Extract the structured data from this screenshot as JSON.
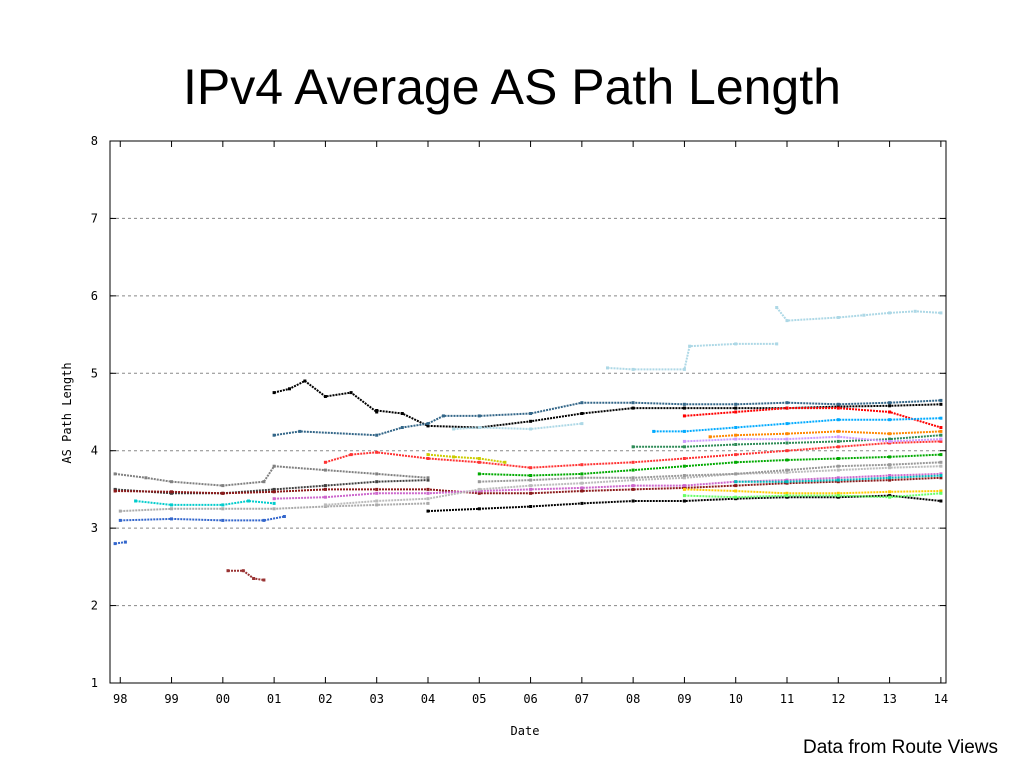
{
  "slide": {
    "title": "IPv4 Average AS Path Length",
    "footnote": "Data from Route Views"
  },
  "chart_data": {
    "type": "scatter",
    "title": "",
    "xlabel": "Date",
    "ylabel": "AS Path Length",
    "xlim": [
      1997.8,
      2014.1
    ],
    "ylim": [
      1,
      8
    ],
    "xticks": [
      1998,
      1999,
      2000,
      2001,
      2002,
      2003,
      2004,
      2005,
      2006,
      2007,
      2008,
      2009,
      2010,
      2011,
      2012,
      2013,
      2014
    ],
    "xtick_labels": [
      "98",
      "99",
      "00",
      "01",
      "02",
      "03",
      "04",
      "05",
      "06",
      "07",
      "08",
      "09",
      "10",
      "11",
      "12",
      "13",
      "14"
    ],
    "yticks": [
      1,
      2,
      3,
      4,
      5,
      6,
      7,
      8
    ],
    "ytick_labels": [
      "1",
      "2",
      "3",
      "4",
      "5",
      "6",
      "7",
      "8"
    ],
    "grid": "horizontal dashed",
    "legend": "none",
    "series": [
      {
        "color": "#404040",
        "points": [
          [
            1997.9,
            3.5
          ],
          [
            1999,
            3.45
          ],
          [
            2000,
            3.45
          ],
          [
            2001,
            3.5
          ],
          [
            2002,
            3.55
          ],
          [
            2003,
            3.6
          ],
          [
            2004,
            3.62
          ]
        ]
      },
      {
        "color": "#808080",
        "points": [
          [
            1997.9,
            3.7
          ],
          [
            1998.5,
            3.65
          ],
          [
            1999,
            3.6
          ],
          [
            2000,
            3.55
          ],
          [
            2000.8,
            3.6
          ],
          [
            2001,
            3.8
          ],
          [
            2002,
            3.75
          ],
          [
            2003,
            3.7
          ],
          [
            2004,
            3.65
          ]
        ]
      },
      {
        "color": "#8b1a1a",
        "points": [
          [
            1997.9,
            3.48
          ],
          [
            1999,
            3.47
          ],
          [
            2000,
            3.45
          ],
          [
            2001,
            3.47
          ],
          [
            2002,
            3.5
          ],
          [
            2003,
            3.5
          ],
          [
            2004,
            3.5
          ],
          [
            2005,
            3.45
          ],
          [
            2006,
            3.45
          ],
          [
            2007,
            3.48
          ],
          [
            2008,
            3.5
          ],
          [
            2009,
            3.52
          ],
          [
            2010,
            3.55
          ],
          [
            2011,
            3.58
          ],
          [
            2012,
            3.6
          ],
          [
            2013,
            3.62
          ],
          [
            2014,
            3.65
          ]
        ]
      },
      {
        "color": "#00cccc",
        "points": [
          [
            1998.3,
            3.35
          ],
          [
            1999,
            3.3
          ],
          [
            2000,
            3.3
          ],
          [
            2000.5,
            3.35
          ],
          [
            2001,
            3.32
          ]
        ]
      },
      {
        "color": "#3366cc",
        "points": [
          [
            1998,
            3.1
          ],
          [
            1999,
            3.12
          ],
          [
            2000,
            3.1
          ],
          [
            2000.8,
            3.1
          ],
          [
            2001.2,
            3.15
          ]
        ]
      },
      {
        "color": "#aaaaaa",
        "points": [
          [
            1998,
            3.22
          ],
          [
            1999,
            3.25
          ],
          [
            2000,
            3.25
          ],
          [
            2001,
            3.25
          ],
          [
            2002,
            3.28
          ],
          [
            2003,
            3.3
          ],
          [
            2004,
            3.32
          ]
        ]
      },
      {
        "color": "#000000",
        "points": [
          [
            2003,
            4.52
          ],
          [
            2003.5,
            4.48
          ],
          [
            2004,
            4.32
          ],
          [
            2005,
            4.3
          ],
          [
            2006,
            4.38
          ],
          [
            2007,
            4.48
          ],
          [
            2008,
            4.55
          ],
          [
            2009,
            4.55
          ],
          [
            2010,
            4.55
          ],
          [
            2011,
            4.55
          ],
          [
            2012,
            4.57
          ],
          [
            2013,
            4.58
          ],
          [
            2014,
            4.6
          ]
        ]
      },
      {
        "color": "#000000",
        "points": [
          [
            2001,
            4.75
          ],
          [
            2001.3,
            4.8
          ],
          [
            2001.6,
            4.9
          ],
          [
            2002,
            4.7
          ],
          [
            2002.5,
            4.75
          ],
          [
            2003,
            4.5
          ]
        ]
      },
      {
        "color": "#000000",
        "points": [
          [
            2004,
            3.22
          ],
          [
            2005,
            3.25
          ],
          [
            2006,
            3.28
          ],
          [
            2007,
            3.32
          ],
          [
            2008,
            3.35
          ],
          [
            2009,
            3.35
          ],
          [
            2010,
            3.38
          ],
          [
            2011,
            3.4
          ],
          [
            2012,
            3.4
          ],
          [
            2013,
            3.42
          ],
          [
            2014,
            3.35
          ]
        ]
      },
      {
        "color": "#336688",
        "points": [
          [
            2001,
            4.2
          ],
          [
            2001.5,
            4.25
          ],
          [
            2003,
            4.2
          ],
          [
            2003.5,
            4.3
          ],
          [
            2004,
            4.35
          ],
          [
            2004.3,
            4.45
          ],
          [
            2005,
            4.45
          ],
          [
            2006,
            4.48
          ],
          [
            2007,
            4.62
          ],
          [
            2008,
            4.62
          ],
          [
            2009,
            4.6
          ],
          [
            2010,
            4.6
          ],
          [
            2011,
            4.62
          ],
          [
            2012,
            4.6
          ],
          [
            2013,
            4.62
          ],
          [
            2014,
            4.65
          ]
        ]
      },
      {
        "color": "#add8e6",
        "points": [
          [
            2004.5,
            4.28
          ],
          [
            2005,
            4.3
          ],
          [
            2006,
            4.28
          ],
          [
            2007,
            4.35
          ]
        ]
      },
      {
        "color": "#add8e6",
        "points": [
          [
            2007.5,
            5.07
          ],
          [
            2008,
            5.05
          ],
          [
            2009,
            5.05
          ],
          [
            2009.1,
            5.35
          ],
          [
            2010,
            5.38
          ],
          [
            2010.8,
            5.38
          ]
        ]
      },
      {
        "color": "#add8e6",
        "points": [
          [
            2010.8,
            5.85
          ],
          [
            2011,
            5.68
          ],
          [
            2012,
            5.72
          ],
          [
            2012.5,
            5.75
          ],
          [
            2013,
            5.78
          ],
          [
            2013.5,
            5.8
          ],
          [
            2014,
            5.78
          ]
        ]
      },
      {
        "color": "#ff3333",
        "points": [
          [
            2002,
            3.85
          ],
          [
            2002.5,
            3.95
          ],
          [
            2003,
            3.98
          ],
          [
            2004,
            3.9
          ],
          [
            2005,
            3.85
          ],
          [
            2006,
            3.78
          ],
          [
            2007,
            3.82
          ],
          [
            2008,
            3.85
          ],
          [
            2009,
            3.9
          ],
          [
            2010,
            3.95
          ],
          [
            2011,
            4.0
          ],
          [
            2012,
            4.05
          ],
          [
            2013,
            4.1
          ],
          [
            2014,
            4.12
          ]
        ]
      },
      {
        "color": "#ff0000",
        "points": [
          [
            2009,
            4.45
          ],
          [
            2010,
            4.5
          ],
          [
            2011,
            4.55
          ],
          [
            2012,
            4.55
          ],
          [
            2013,
            4.5
          ],
          [
            2014,
            4.3
          ]
        ]
      },
      {
        "color": "#cccc00",
        "points": [
          [
            2004,
            3.95
          ],
          [
            2004.5,
            3.92
          ],
          [
            2005,
            3.9
          ],
          [
            2005.5,
            3.85
          ]
        ]
      },
      {
        "color": "#00aa00",
        "points": [
          [
            2005,
            3.7
          ],
          [
            2006,
            3.68
          ],
          [
            2007,
            3.7
          ],
          [
            2008,
            3.75
          ],
          [
            2009,
            3.8
          ],
          [
            2010,
            3.85
          ],
          [
            2011,
            3.88
          ],
          [
            2012,
            3.9
          ],
          [
            2013,
            3.92
          ],
          [
            2014,
            3.95
          ]
        ]
      },
      {
        "color": "#2e8b57",
        "points": [
          [
            2008,
            4.05
          ],
          [
            2009,
            4.05
          ],
          [
            2010,
            4.08
          ],
          [
            2011,
            4.1
          ],
          [
            2012,
            4.12
          ],
          [
            2013,
            4.15
          ],
          [
            2014,
            4.2
          ]
        ]
      },
      {
        "color": "#00aaff",
        "points": [
          [
            2008.4,
            4.25
          ],
          [
            2009,
            4.25
          ],
          [
            2010,
            4.3
          ],
          [
            2011,
            4.35
          ],
          [
            2012,
            4.4
          ],
          [
            2013,
            4.4
          ],
          [
            2014,
            4.42
          ]
        ]
      },
      {
        "color": "#cc66cc",
        "points": [
          [
            2001,
            3.38
          ],
          [
            2002,
            3.4
          ],
          [
            2003,
            3.45
          ],
          [
            2004,
            3.45
          ],
          [
            2005,
            3.48
          ],
          [
            2006,
            3.5
          ],
          [
            2007,
            3.52
          ],
          [
            2008,
            3.55
          ],
          [
            2009,
            3.55
          ],
          [
            2010,
            3.6
          ],
          [
            2011,
            3.62
          ],
          [
            2012,
            3.65
          ],
          [
            2013,
            3.68
          ],
          [
            2014,
            3.7
          ]
        ]
      },
      {
        "color": "#bbbbbb",
        "points": [
          [
            2002,
            3.3
          ],
          [
            2003,
            3.35
          ],
          [
            2004,
            3.38
          ],
          [
            2005,
            3.5
          ],
          [
            2006,
            3.55
          ],
          [
            2007,
            3.58
          ],
          [
            2008,
            3.62
          ],
          [
            2009,
            3.65
          ],
          [
            2010,
            3.7
          ],
          [
            2011,
            3.72
          ],
          [
            2012,
            3.75
          ],
          [
            2013,
            3.78
          ],
          [
            2014,
            3.8
          ]
        ]
      },
      {
        "color": "#999999",
        "points": [
          [
            2005,
            3.6
          ],
          [
            2006,
            3.62
          ],
          [
            2007,
            3.65
          ],
          [
            2008,
            3.65
          ],
          [
            2009,
            3.68
          ],
          [
            2010,
            3.7
          ],
          [
            2011,
            3.75
          ],
          [
            2012,
            3.8
          ],
          [
            2013,
            3.82
          ],
          [
            2014,
            3.85
          ]
        ]
      },
      {
        "color": "#ff8800",
        "points": [
          [
            2009.5,
            4.18
          ],
          [
            2010,
            4.2
          ],
          [
            2011,
            4.22
          ],
          [
            2012,
            4.25
          ],
          [
            2013,
            4.22
          ],
          [
            2014,
            4.25
          ]
        ]
      },
      {
        "color": "#cc99ff",
        "points": [
          [
            2009,
            4.12
          ],
          [
            2010,
            4.15
          ],
          [
            2011,
            4.15
          ],
          [
            2012,
            4.18
          ],
          [
            2013,
            4.12
          ],
          [
            2014,
            4.15
          ]
        ]
      },
      {
        "color": "#ffcc00",
        "points": [
          [
            2009,
            3.5
          ],
          [
            2010,
            3.48
          ],
          [
            2011,
            3.45
          ],
          [
            2012,
            3.45
          ],
          [
            2013,
            3.47
          ],
          [
            2014,
            3.48
          ]
        ]
      },
      {
        "color": "#66ff66",
        "points": [
          [
            2009,
            3.42
          ],
          [
            2010,
            3.4
          ],
          [
            2011,
            3.42
          ],
          [
            2012,
            3.42
          ],
          [
            2013,
            3.4
          ],
          [
            2014,
            3.45
          ]
        ]
      },
      {
        "color": "#00bbbb",
        "points": [
          [
            2010,
            3.6
          ],
          [
            2011,
            3.6
          ],
          [
            2012,
            3.62
          ],
          [
            2013,
            3.65
          ],
          [
            2014,
            3.68
          ]
        ]
      },
      {
        "color": "#993333",
        "points": [
          [
            2000.1,
            2.45
          ],
          [
            2000.4,
            2.45
          ],
          [
            2000.6,
            2.35
          ],
          [
            2000.8,
            2.33
          ]
        ]
      },
      {
        "color": "#3366cc",
        "points": [
          [
            1997.9,
            2.8
          ],
          [
            1998.1,
            2.82
          ]
        ]
      }
    ]
  }
}
